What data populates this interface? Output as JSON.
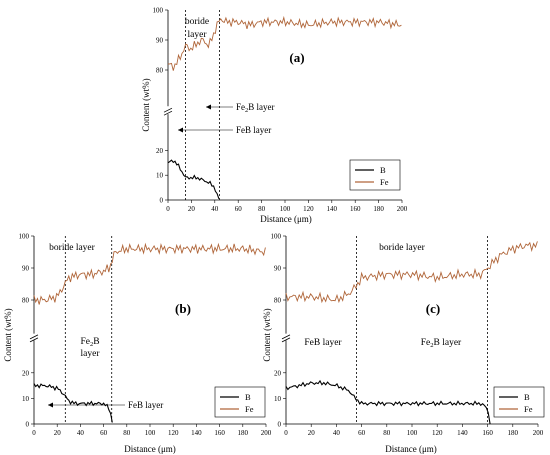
{
  "colors": {
    "B": "#000000",
    "Fe": "#b0663a"
  },
  "chart_data": [
    {
      "type": "line",
      "panel_label": "(a)",
      "xlabel": "Distance (μm)",
      "ylabel": "Content (wt%)",
      "xlim": [
        0,
        200
      ],
      "xticks": [
        "0",
        "20",
        "40",
        "60",
        "80",
        "100",
        "120",
        "140",
        "160",
        "180",
        "200"
      ],
      "lower_yticks": [
        "0",
        "10",
        "20"
      ],
      "upper_yticks": [
        "80",
        "90",
        "100"
      ],
      "lower_ylim": [
        0,
        25
      ],
      "upper_ylim": [
        75,
        100
      ],
      "legend_position": "bottom-right",
      "legend": [
        "B",
        "Fe"
      ],
      "series": [
        {
          "name": "Fe",
          "x": [
            0,
            5,
            10,
            15,
            20,
            25,
            30,
            35,
            40,
            42,
            45,
            50,
            60,
            70,
            80,
            100,
            120,
            140,
            160,
            180,
            200
          ],
          "values": [
            82,
            81,
            84,
            88,
            87,
            89,
            90,
            88,
            93,
            95,
            97,
            96,
            96,
            95,
            96,
            96,
            95,
            96,
            96,
            96,
            95
          ]
        },
        {
          "name": "B",
          "x": [
            0,
            5,
            10,
            15,
            20,
            25,
            30,
            35,
            40,
            42,
            44
          ],
          "values": [
            15,
            16,
            13,
            9,
            9,
            9,
            8,
            7,
            5,
            2,
            0
          ]
        }
      ],
      "vlines": [
        15,
        44
      ],
      "annotations": [
        {
          "label": "boride layer",
          "line1": "boride",
          "line2": "layer"
        },
        {
          "label": "Fe2B layer",
          "text_pre": "Fe",
          "text_sub": "2",
          "text_post": "B layer"
        },
        {
          "label": "FeB layer",
          "text": "FeB layer"
        }
      ]
    },
    {
      "type": "line",
      "panel_label": "(b)",
      "xlabel": "Distance (μm)",
      "ylabel": "Content (wt%)",
      "xlim": [
        0,
        200
      ],
      "xticks": [
        "0",
        "20",
        "40",
        "60",
        "80",
        "100",
        "120",
        "140",
        "160",
        "180",
        "200"
      ],
      "lower_yticks": [
        "0",
        "10",
        "20"
      ],
      "upper_yticks": [
        "80",
        "90",
        "100"
      ],
      "lower_ylim": [
        0,
        25
      ],
      "upper_ylim": [
        75,
        100
      ],
      "legend_position": "bottom-right",
      "legend": [
        "B",
        "Fe"
      ],
      "series": [
        {
          "name": "Fe",
          "x": [
            0,
            10,
            20,
            25,
            30,
            40,
            50,
            60,
            65,
            70,
            80,
            100,
            120,
            140,
            160,
            180,
            200
          ],
          "values": [
            80,
            80,
            81,
            84,
            87,
            88,
            88,
            89,
            90,
            95,
            96,
            96,
            96,
            96,
            96,
            96,
            95
          ]
        },
        {
          "name": "B",
          "x": [
            0,
            10,
            20,
            25,
            30,
            35,
            40,
            50,
            60,
            65,
            68
          ],
          "values": [
            15,
            15,
            14,
            12,
            9,
            8,
            8,
            8,
            8,
            6,
            0
          ]
        }
      ],
      "vlines": [
        27,
        67
      ],
      "annotations": [
        {
          "label": "boride layer",
          "text": "boride layer"
        },
        {
          "label": "Fe2B layer",
          "text_pre": "Fe",
          "text_sub": "2",
          "text_post": "B",
          "line2": "layer"
        },
        {
          "label": "FeB layer",
          "text": "FeB layer"
        }
      ]
    },
    {
      "type": "line",
      "panel_label": "(c)",
      "xlabel": "Distance (μm)",
      "ylabel": "Content (wt%)",
      "xlim": [
        0,
        200
      ],
      "xticks": [
        "0",
        "20",
        "40",
        "60",
        "80",
        "100",
        "120",
        "140",
        "160",
        "180",
        "200"
      ],
      "lower_yticks": [
        "0",
        "10",
        "20"
      ],
      "upper_yticks": [
        "80",
        "90",
        "100"
      ],
      "lower_ylim": [
        0,
        25
      ],
      "upper_ylim": [
        75,
        100
      ],
      "legend_position": "bottom-right",
      "legend": [
        "B",
        "Fe"
      ],
      "series": [
        {
          "name": "Fe",
          "x": [
            0,
            20,
            40,
            50,
            55,
            60,
            80,
            100,
            120,
            140,
            155,
            160,
            170,
            180,
            190,
            200
          ],
          "values": [
            81,
            81,
            80,
            82,
            84,
            87,
            88,
            88,
            87,
            88,
            88,
            90,
            94,
            96,
            97,
            97
          ]
        },
        {
          "name": "B",
          "x": [
            0,
            10,
            20,
            30,
            40,
            50,
            55,
            60,
            80,
            100,
            120,
            140,
            155,
            160,
            162
          ],
          "values": [
            14,
            15,
            16,
            16,
            15,
            13,
            10,
            8,
            8,
            8,
            8,
            8,
            8,
            6,
            0
          ]
        }
      ],
      "vlines": [
        56,
        160
      ],
      "annotations": [
        {
          "label": "boride layer",
          "text": "boride layer"
        },
        {
          "label": "FeB layer",
          "text": "FeB layer"
        },
        {
          "label": "Fe2B layer",
          "text_pre": "Fe",
          "text_sub": "2",
          "text_post": "B layer"
        }
      ]
    }
  ]
}
